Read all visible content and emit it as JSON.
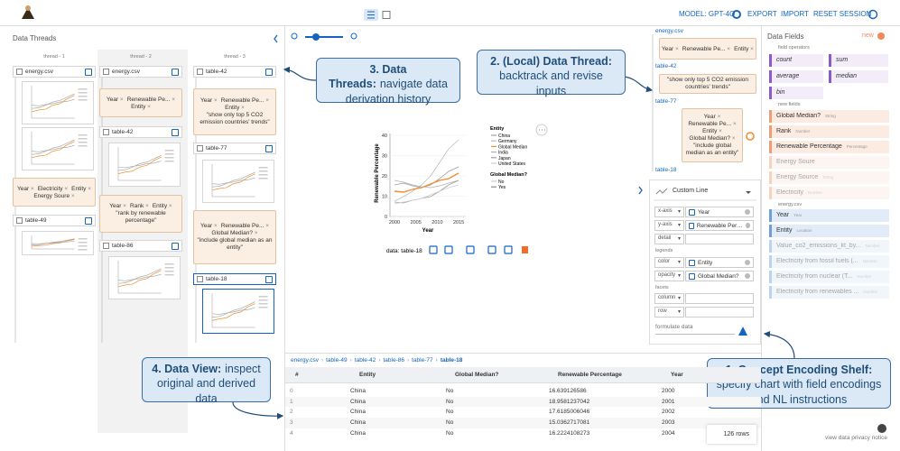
{
  "toolbar": {
    "model": "MODEL: GPT-4O",
    "export": "EXPORT",
    "import": "IMPORT",
    "reset_session": "RESET SESSION"
  },
  "threads": {
    "title": "Data Threads",
    "columns": [
      {
        "label": "thread - 1",
        "source": "energy.csv",
        "cards": [
          {
            "fields": [
              "Year",
              "Electricity",
              "Entity",
              "Energy Soure"
            ]
          }
        ],
        "tables": [
          "table-49"
        ]
      },
      {
        "label": "thread - 2",
        "source": "energy.csv",
        "cards": [
          {
            "fields": [
              "Year",
              "Renewable Pe...",
              "Entity"
            ]
          },
          {
            "fields": [
              "Year",
              "Rank",
              "Entity"
            ],
            "prompt": "\"rank by renewable percentage\""
          }
        ],
        "tables": [
          "table-42",
          "table-86"
        ]
      },
      {
        "label": "thread - 3",
        "cards": [
          {
            "fields": [
              "Year",
              "Renewable Pe...",
              "Entity"
            ],
            "prompt": "\"show only top 5 CO2 emission countries' trends\""
          },
          {
            "fields": [
              "Year",
              "Renewable Pe...",
              "Global Median?"
            ],
            "prompt": "\"include global median as an entity\""
          }
        ],
        "tables": [
          "table-42",
          "table-77",
          "table-18"
        ]
      }
    ]
  },
  "local_thread": {
    "source": "energy.csv",
    "cards": [
      {
        "fields": [
          "Year",
          "Renewable Pe...",
          "Entity"
        ]
      },
      {
        "prompt": "\"show only top 5 CO2 emission countries' trends\""
      },
      {
        "fields": [
          "Year",
          "Renewable Pe...",
          "Entity",
          "Global Median?"
        ],
        "prompt": "\"include global median as an entity\""
      }
    ],
    "tables": [
      "table-42",
      "table-77",
      "table-18"
    ]
  },
  "chart": {
    "y_label": "Renewable Percentage",
    "x_label": "Year",
    "yticks": [
      "0",
      "10",
      "20",
      "30",
      "40"
    ],
    "xticks": [
      "2000",
      "2005",
      "2010",
      "2015"
    ],
    "legend": {
      "title": "Entity",
      "items": [
        {
          "name": "China",
          "color": "#9e9e9e"
        },
        {
          "name": "Germany",
          "color": "#bdbdbd"
        },
        {
          "name": "Global Median",
          "color": "#f28e2b"
        },
        {
          "name": "India",
          "color": "#b0b0b0"
        },
        {
          "name": "Japan",
          "color": "#a0a0a0"
        },
        {
          "name": "United States",
          "color": "#cfcfcf"
        }
      ]
    },
    "legend2": {
      "title": "Global Median?",
      "items": [
        "No",
        "Yes"
      ]
    },
    "data_label": "data: table-18"
  },
  "callouts": [
    {
      "title": "1. Concept Encoding Shelf:",
      "body": "specify chart with field encodings and NL instructions"
    },
    {
      "title": "2. (Local) Data Thread:",
      "body": "backtrack and revise inputs"
    },
    {
      "title": "3. Data Threads:",
      "body": "navigate data derivation history"
    },
    {
      "title": "4. Data View:",
      "body": "inspect original and derived data"
    }
  ],
  "encoding": {
    "chart_type": "Custom Line",
    "channels": [
      {
        "name": "x-axis",
        "field": "Year"
      },
      {
        "name": "y-axis",
        "field": "Renewable Percentage"
      },
      {
        "name": "detail"
      },
      {
        "name": "color",
        "field": "Entity"
      },
      {
        "name": "opacity",
        "field": "Global Median?"
      },
      {
        "name": "column"
      },
      {
        "name": "row"
      }
    ],
    "legends_label": "legends",
    "facets_label": "facets",
    "prompt_placeholder": "formulate data"
  },
  "table": {
    "breadcrumb": [
      "energy.csv",
      "table-49",
      "table-42",
      "table-86",
      "table-77",
      "table-18"
    ],
    "columns": [
      "#",
      "Entity",
      "Global Median?",
      "Renewable Percentage",
      "Year"
    ],
    "rows": [
      [
        "0",
        "China",
        "No",
        "16.639126586",
        "2000"
      ],
      [
        "1",
        "China",
        "No",
        "18.9581237042",
        "2001"
      ],
      [
        "2",
        "China",
        "No",
        "17.6185006046",
        "2002"
      ],
      [
        "3",
        "China",
        "No",
        "15.0362717081",
        "2003"
      ],
      [
        "4",
        "China",
        "No",
        "16.2224108273",
        "2004"
      ]
    ],
    "row_count": "126 rows"
  },
  "fields": {
    "title": "Data Fields",
    "new_button": "new",
    "operators_label": "field operators",
    "operators": [
      "count",
      "sum",
      "average",
      "median",
      "bin"
    ],
    "new_fields_label": "new fields",
    "new_fields": [
      {
        "name": "Global Median?",
        "type": "String"
      },
      {
        "name": "Rank",
        "type": "Number"
      },
      {
        "name": "Renewable Percentage",
        "type": "Percentage"
      },
      {
        "name": "Energy Soure"
      },
      {
        "name": "Energy Source",
        "type": "String"
      },
      {
        "name": "Electricity",
        "type": "Number"
      }
    ],
    "source_label": "energy.csv",
    "source_fields": [
      {
        "name": "Year",
        "type": "Year"
      },
      {
        "name": "Entity",
        "type": "Location"
      },
      {
        "name": "Value_co2_emissions_kt_by...",
        "type": "Number"
      },
      {
        "name": "Electricity from fossil fuels (...",
        "type": "Number"
      },
      {
        "name": "Electricity from nuclear (T...",
        "type": "Number"
      },
      {
        "name": "Electricity from renewables ...",
        "type": "Number"
      }
    ]
  },
  "footer": {
    "privacy": "view data privacy notice"
  }
}
